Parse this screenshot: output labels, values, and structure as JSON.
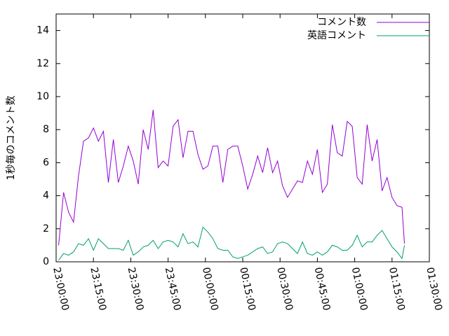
{
  "chart_data": {
    "type": "line",
    "y_label": "1秒毎のコメント数",
    "x": [
      "23:01:00",
      "23:03:00",
      "23:05:00",
      "23:07:00",
      "23:09:00",
      "23:11:00",
      "23:13:00",
      "23:15:00",
      "23:17:00",
      "23:19:00",
      "23:21:00",
      "23:23:00",
      "23:25:00",
      "23:27:00",
      "23:29:00",
      "23:31:00",
      "23:33:00",
      "23:35:00",
      "23:37:00",
      "23:39:00",
      "23:41:00",
      "23:43:00",
      "23:45:00",
      "23:47:00",
      "23:49:00",
      "23:51:00",
      "23:53:00",
      "23:55:00",
      "23:57:00",
      "23:59:00",
      "00:01:00",
      "00:03:00",
      "00:05:00",
      "00:07:00",
      "00:09:00",
      "00:11:00",
      "00:13:00",
      "00:15:00",
      "00:17:00",
      "00:19:00",
      "00:21:00",
      "00:23:00",
      "00:25:00",
      "00:27:00",
      "00:29:00",
      "00:31:00",
      "00:33:00",
      "00:35:00",
      "00:37:00",
      "00:39:00",
      "00:41:00",
      "00:43:00",
      "00:45:00",
      "00:47:00",
      "00:49:00",
      "00:51:00",
      "00:53:00",
      "00:55:00",
      "00:57:00",
      "00:59:00",
      "01:01:00",
      "01:03:00",
      "01:05:00",
      "01:07:00",
      "01:09:00",
      "01:11:00",
      "01:13:00",
      "01:15:00",
      "01:17:00",
      "01:19:00",
      "01:20:00"
    ],
    "series": [
      {
        "name": "コメント数",
        "color": "#9400d3",
        "values": [
          1.0,
          4.2,
          3.0,
          2.4,
          5.2,
          7.3,
          7.5,
          8.1,
          7.3,
          7.9,
          4.8,
          7.4,
          4.8,
          5.8,
          7.0,
          6.1,
          4.7,
          8.0,
          6.8,
          9.2,
          5.7,
          6.1,
          5.8,
          8.2,
          8.6,
          6.3,
          7.9,
          7.9,
          6.5,
          5.6,
          5.8,
          7.0,
          7.0,
          4.8,
          6.8,
          7.0,
          7.0,
          5.8,
          4.4,
          5.3,
          6.4,
          5.4,
          6.9,
          5.4,
          6.1,
          4.6,
          3.9,
          4.4,
          4.9,
          4.8,
          6.1,
          5.3,
          6.8,
          4.2,
          4.7,
          8.3,
          6.6,
          6.4,
          8.5,
          8.2,
          5.1,
          4.7,
          8.3,
          6.1,
          7.4,
          4.3,
          5.1,
          3.9,
          3.4,
          3.3,
          1.1
        ]
      },
      {
        "name": "英語コメント",
        "color": "#009e73",
        "values": [
          0.1,
          0.5,
          0.4,
          0.6,
          1.1,
          1.0,
          1.4,
          0.7,
          1.4,
          1.1,
          0.8,
          0.8,
          0.8,
          0.7,
          1.3,
          0.4,
          0.6,
          0.9,
          1.0,
          1.3,
          0.8,
          1.2,
          1.3,
          1.2,
          0.9,
          1.7,
          1.1,
          1.2,
          0.9,
          2.1,
          1.8,
          1.4,
          0.8,
          0.7,
          0.7,
          0.3,
          0.2,
          0.3,
          0.4,
          0.6,
          0.8,
          0.9,
          0.5,
          0.6,
          1.1,
          1.2,
          1.1,
          0.8,
          0.5,
          1.2,
          0.5,
          0.4,
          0.6,
          0.4,
          0.6,
          1.0,
          0.9,
          0.7,
          0.7,
          1.0,
          1.6,
          0.9,
          1.2,
          1.2,
          1.6,
          1.9,
          1.4,
          0.9,
          0.6,
          0.2,
          1.0
        ]
      }
    ],
    "xlim": [
      "23:00:00",
      "01:30:00"
    ],
    "xticks": [
      "23:00:00",
      "23:15:00",
      "23:30:00",
      "23:45:00",
      "00:00:00",
      "00:15:00",
      "00:30:00",
      "00:45:00",
      "01:00:00",
      "01:15:00",
      "01:30:00"
    ],
    "ylim": [
      0,
      15
    ],
    "yticks": [
      0,
      2,
      4,
      6,
      8,
      10,
      12,
      14
    ],
    "legend": "top-right"
  }
}
